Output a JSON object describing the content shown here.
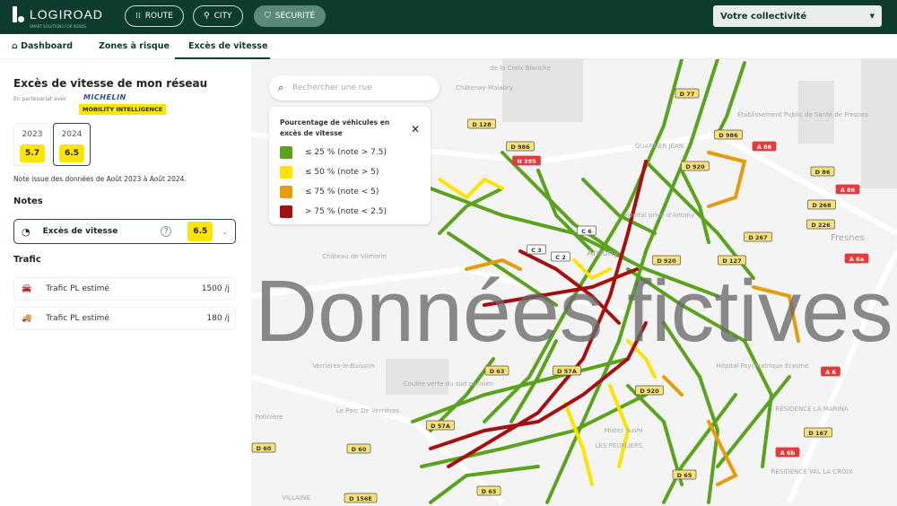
{
  "header": {
    "logo": "LOGIROAD",
    "logo_tagline": "SMART SOLUTIONS FOR ROADS",
    "nav": [
      {
        "label": "ROUTE",
        "icon": "route-icon"
      },
      {
        "label": "CITY",
        "icon": "city-icon"
      },
      {
        "label": "SÉCURITÉ",
        "icon": "shield-check-icon",
        "active": true
      }
    ],
    "collectivity": "Votre collectivité"
  },
  "tabs": [
    {
      "label": "Dashboard",
      "icon": "home-icon"
    },
    {
      "label": "Zones à risque"
    },
    {
      "label": "Excès de vitesse",
      "active": true
    }
  ],
  "sidebar": {
    "title": "Excès de vitesse de mon réseau",
    "partner_label": "En partenariat avec",
    "partner_name": "MICHELIN",
    "partner_sub": "MOBILITY INTELLIGENCE",
    "years": [
      {
        "year": "2023",
        "score": "5.7"
      },
      {
        "year": "2024",
        "score": "6.5",
        "selected": true
      }
    ],
    "data_note": "Note issue des données de Août 2023 à Août 2024.",
    "notes_heading": "Notes",
    "note_item": {
      "label": "Excès de vitesse",
      "score": "6.5"
    },
    "traffic_heading": "Trafic",
    "traffic": [
      {
        "label": "Trafic PL estimé",
        "value": "1500 /j",
        "icon": "car-icon"
      },
      {
        "label": "Trafic PL estimé",
        "value": "180 /j",
        "icon": "truck-icon"
      }
    ]
  },
  "map": {
    "search_placeholder": "Rechercher une rue",
    "legend": {
      "title": "Pourcentage de véhicules en excès de vitesse",
      "items": [
        {
          "label": "≤ 25 %  (note > 7.5)",
          "color": "#5ba31e"
        },
        {
          "label": "≤ 50 % (note > 5)",
          "color": "#fce300"
        },
        {
          "label": "≤ 75 % (note < 5)",
          "color": "#e59b0c"
        },
        {
          "label": "> 75 % (note < 2.5)",
          "color": "#a50f0f"
        }
      ]
    },
    "watermark": "Données fictives",
    "places": [
      "de la Croix Blanche",
      "Châtenay-Malabry",
      "Établissement Public de Santé de Fresnes",
      "QUARTIER JEAN",
      "Hôpital privé d'Antony",
      "Antony",
      "Fresnes",
      "Château de Vilmorin",
      "Verrières-le-Buisson",
      "Coulée verte du sud parisien",
      "Le Parc De Verrières",
      "Potinière",
      "Hôpital Psychiatrique Erasme",
      "RÉSIDENCE LA MARINA",
      "RÉSIDENCE VAL LA CROIX",
      "LES PEUPLIERS",
      "Mister Sushi",
      "VILLAINE"
    ],
    "road_labels": [
      "D 77",
      "D 128",
      "D 986",
      "N 385",
      "D 986",
      "D 920",
      "A 86",
      "D 86",
      "A 86",
      "D 268",
      "D 226",
      "D 267",
      "D 127",
      "C 6",
      "C 3",
      "C 2",
      "D 920",
      "D 63",
      "D 57A",
      "D 920",
      "A 6a",
      "A 6",
      "D 167",
      "A 6b",
      "D 65",
      "D 65",
      "D 156E",
      "D 60",
      "D 60",
      "D 57A"
    ]
  }
}
